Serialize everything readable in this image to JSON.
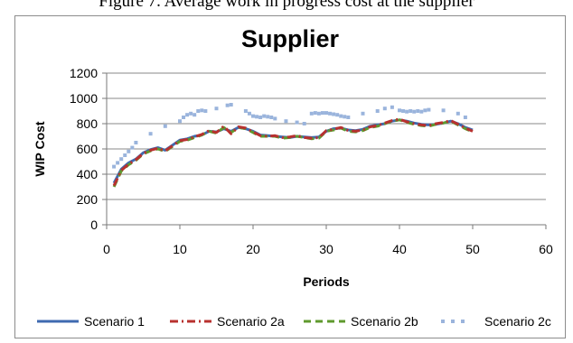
{
  "figure_caption": "Figure 7. Average work in progress cost at the supplier",
  "chart_data": {
    "type": "line",
    "title": "Supplier",
    "xlabel": "Periods",
    "ylabel": "WIP Cost",
    "xlim": [
      0,
      60
    ],
    "ylim": [
      0,
      1200
    ],
    "xticks": [
      0,
      10,
      20,
      30,
      40,
      50,
      60
    ],
    "yticks": [
      0,
      200,
      400,
      600,
      800,
      1000,
      1200
    ],
    "grid": "horizontal",
    "legend_position": "bottom",
    "colors": {
      "s1": "#3f6ab0",
      "s2a": "#b8312f",
      "s2b": "#5f9a2e",
      "s2c": "#9ab4dc"
    },
    "series": [
      {
        "name": "Scenario 1",
        "style": "solid",
        "x": [
          1,
          2,
          3,
          4,
          5,
          6,
          7,
          8,
          9,
          10,
          11,
          12,
          13,
          14,
          15,
          16,
          17,
          18,
          19,
          20,
          21,
          22,
          23,
          24,
          25,
          26,
          27,
          28,
          29,
          30,
          31,
          32,
          33,
          34,
          35,
          36,
          37,
          38,
          39,
          40,
          41,
          42,
          43,
          44,
          45,
          46,
          47,
          48,
          49,
          50
        ],
        "y": [
          330,
          440,
          490,
          520,
          570,
          595,
          610,
          590,
          630,
          670,
          680,
          700,
          710,
          740,
          735,
          760,
          740,
          770,
          760,
          740,
          710,
          705,
          700,
          695,
          690,
          700,
          695,
          690,
          695,
          740,
          760,
          765,
          750,
          745,
          755,
          780,
          790,
          800,
          820,
          830,
          820,
          805,
          795,
          790,
          795,
          805,
          820,
          800,
          770,
          750
        ]
      },
      {
        "name": "Scenario 2a",
        "style": "dashdot",
        "x": [
          1,
          2,
          3,
          4,
          5,
          6,
          7,
          8,
          9,
          10,
          11,
          12,
          13,
          14,
          15,
          16,
          17,
          18,
          19,
          20,
          21,
          22,
          23,
          24,
          25,
          26,
          27,
          28,
          29,
          30,
          31,
          32,
          33,
          34,
          35,
          36,
          37,
          38,
          39,
          40,
          41,
          42,
          43,
          44,
          45,
          46,
          47,
          48,
          49,
          50
        ],
        "y": [
          310,
          430,
          480,
          515,
          565,
          590,
          605,
          585,
          625,
          665,
          675,
          695,
          715,
          745,
          730,
          780,
          720,
          775,
          765,
          735,
          705,
          700,
          705,
          690,
          695,
          705,
          690,
          685,
          690,
          745,
          755,
          770,
          745,
          740,
          750,
          775,
          785,
          805,
          825,
          835,
          815,
          800,
          790,
          785,
          800,
          810,
          825,
          795,
          765,
          740
        ]
      },
      {
        "name": "Scenario 2b",
        "style": "dashed",
        "x": [
          1,
          2,
          3,
          4,
          5,
          6,
          7,
          8,
          9,
          10,
          11,
          12,
          13,
          14,
          15,
          16,
          17,
          18,
          19,
          20,
          21,
          22,
          23,
          24,
          25,
          26,
          27,
          28,
          29,
          30,
          31,
          32,
          33,
          34,
          35,
          36,
          37,
          38,
          39,
          40,
          41,
          42,
          43,
          44,
          45,
          46,
          47,
          48,
          49,
          50
        ],
        "y": [
          300,
          425,
          475,
          510,
          560,
          585,
          600,
          580,
          620,
          660,
          670,
          690,
          710,
          740,
          725,
          770,
          730,
          770,
          760,
          730,
          700,
          700,
          700,
          685,
          690,
          700,
          690,
          680,
          685,
          740,
          750,
          765,
          740,
          735,
          745,
          770,
          780,
          800,
          820,
          830,
          810,
          795,
          785,
          780,
          795,
          805,
          820,
          790,
          760,
          735
        ]
      },
      {
        "name": "Scenario 2c",
        "style": "dotted",
        "x": [
          1,
          1.5,
          2,
          2.5,
          3,
          3.5,
          4,
          6,
          8,
          10,
          10.5,
          11,
          11.5,
          12,
          12.5,
          13,
          13.5,
          15,
          16.5,
          17,
          19,
          19.5,
          20,
          20.5,
          21,
          21.5,
          22,
          22.5,
          23,
          24.5,
          26,
          27,
          28,
          28.5,
          29,
          29.5,
          30,
          30.5,
          31,
          31.5,
          32,
          32.5,
          33,
          35,
          37,
          38,
          39,
          40,
          40.5,
          41,
          41.5,
          42,
          42.5,
          43,
          43.5,
          44,
          46,
          48,
          49
        ],
        "y": [
          460,
          490,
          520,
          550,
          580,
          610,
          650,
          720,
          780,
          820,
          850,
          870,
          880,
          870,
          900,
          905,
          900,
          920,
          945,
          950,
          900,
          880,
          860,
          855,
          850,
          860,
          855,
          850,
          840,
          820,
          810,
          800,
          880,
          885,
          880,
          885,
          885,
          880,
          875,
          870,
          860,
          855,
          850,
          880,
          900,
          920,
          930,
          905,
          900,
          895,
          900,
          895,
          900,
          895,
          905,
          910,
          905,
          880,
          850
        ]
      }
    ]
  }
}
